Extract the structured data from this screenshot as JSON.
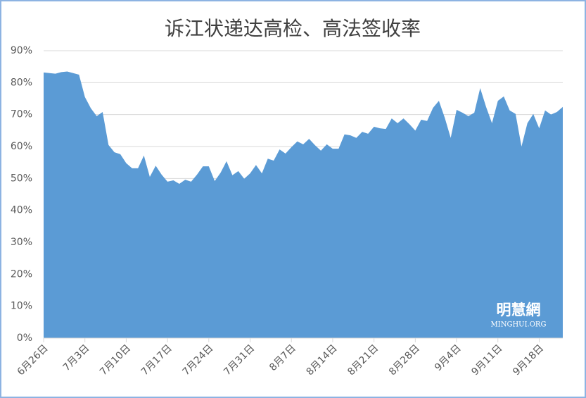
{
  "chart_data": {
    "type": "area",
    "title": "诉江状递达高检、高法签收率",
    "categories": [
      "6月26日",
      null,
      null,
      null,
      null,
      null,
      null,
      "7月3日",
      null,
      null,
      null,
      null,
      null,
      null,
      "7月10日",
      null,
      null,
      null,
      null,
      null,
      null,
      "7月17日",
      null,
      null,
      null,
      null,
      null,
      null,
      "7月24日",
      null,
      null,
      null,
      null,
      null,
      null,
      "7月31日",
      null,
      null,
      null,
      null,
      null,
      null,
      "8月7日",
      null,
      null,
      null,
      null,
      null,
      null,
      "8月14日",
      null,
      null,
      null,
      null,
      null,
      null,
      "8月21日",
      null,
      null,
      null,
      null,
      null,
      null,
      "8月28日",
      null,
      null,
      null,
      null,
      null,
      null,
      "9月4日",
      null,
      null,
      null,
      null,
      null,
      null,
      "9月11日",
      null,
      null,
      null,
      null,
      null,
      null,
      "9月18日",
      null,
      null,
      null,
      null
    ],
    "values": [
      83.2,
      83,
      82.8,
      83.3,
      83.5,
      83,
      82.5,
      75.5,
      72,
      69.5,
      70.8,
      60.5,
      58.2,
      57.6,
      54.8,
      53.2,
      53.2,
      57.2,
      50.5,
      54,
      51.2,
      49,
      49.4,
      48.3,
      49.6,
      49,
      51.2,
      53.8,
      53.8,
      49.2,
      51.8,
      55.4,
      51,
      52.3,
      49.9,
      51.6,
      54.2,
      51.6,
      56.2,
      55.6,
      59.1,
      57.8,
      59.8,
      61.6,
      60.7,
      62.4,
      60.4,
      58.7,
      60.7,
      59.3,
      59.3,
      63.8,
      63.5,
      62.7,
      64.6,
      64,
      66.2,
      65.7,
      65.5,
      68.8,
      67.3,
      68.8,
      67,
      65,
      68.4,
      68,
      72.1,
      74.3,
      69,
      62.7,
      71.5,
      70.6,
      69.5,
      70.6,
      78.3,
      72.4,
      67.3,
      74.3,
      75.7,
      71.3,
      70.2,
      60,
      67.3,
      70.2,
      65.7,
      71.3,
      70,
      70.8,
      72.4
    ],
    "color": "#5b9bd5",
    "ylim": [
      0,
      90
    ],
    "yticks": [
      {
        "value": 0,
        "label": "0%"
      },
      {
        "value": 10,
        "label": "10%"
      },
      {
        "value": 20,
        "label": "20%"
      },
      {
        "value": 30,
        "label": "30%"
      },
      {
        "value": 40,
        "label": "40%"
      },
      {
        "value": 50,
        "label": "50%"
      },
      {
        "value": 60,
        "label": "60%"
      },
      {
        "value": 70,
        "label": "70%"
      },
      {
        "value": 80,
        "label": "80%"
      },
      {
        "value": 90,
        "label": "90%"
      }
    ],
    "grid": true,
    "watermark": {
      "logo": "明慧網",
      "site": "MINGHUI.ORG"
    }
  }
}
